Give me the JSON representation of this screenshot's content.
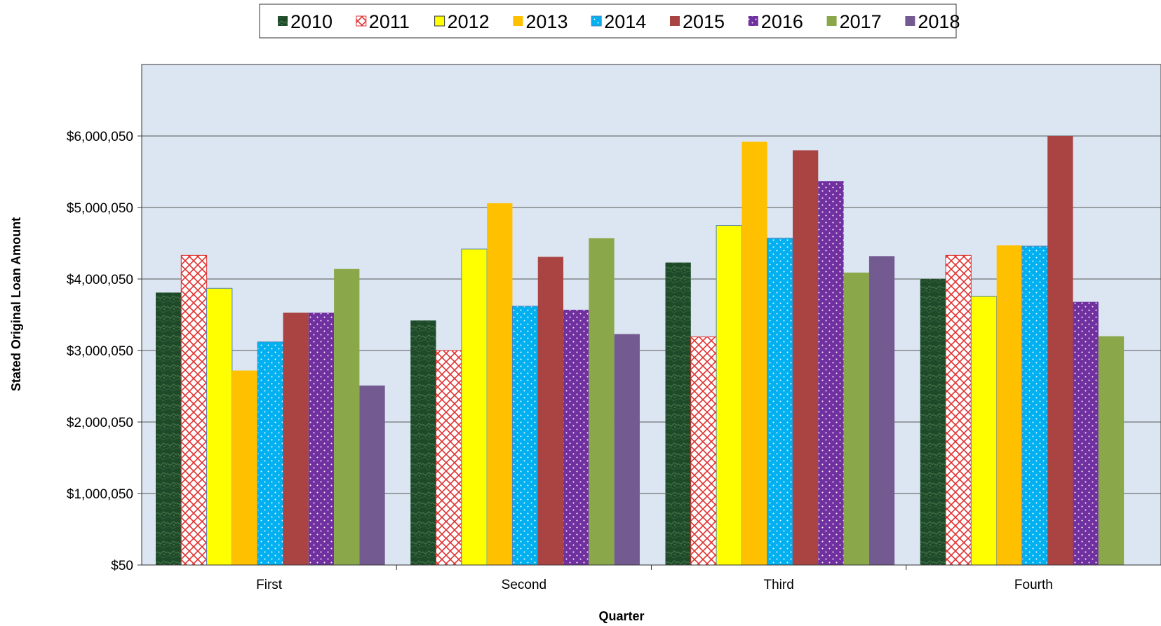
{
  "chart_data": {
    "type": "bar",
    "title": "",
    "xlabel": "Quarter",
    "ylabel": "Stated Original Loan Amount",
    "categories": [
      "First",
      "Second",
      "Third",
      "Fourth"
    ],
    "yticks": [
      "$50",
      "$1,000,050",
      "$2,000,050",
      "$3,000,050",
      "$4,000,050",
      "$5,000,050",
      "$6,000,050"
    ],
    "ylim": [
      50,
      7000050
    ],
    "grid": true,
    "legend_position": "top-center",
    "series": [
      {
        "name": "2010",
        "color": "#1f4a2a",
        "values": [
          3810050,
          3420050,
          4230050,
          4000050
        ]
      },
      {
        "name": "2011",
        "color": "#e03030",
        "values": [
          4330050,
          3000050,
          3190050,
          4330050
        ]
      },
      {
        "name": "2012",
        "color": "#ffff00",
        "values": [
          3870050,
          4420050,
          4750050,
          3760050
        ]
      },
      {
        "name": "2013",
        "color": "#ffc000",
        "values": [
          2720050,
          5060050,
          5920050,
          4470050
        ]
      },
      {
        "name": "2014",
        "color": "#00b0f0",
        "values": [
          3120050,
          3620050,
          4570050,
          4460050
        ]
      },
      {
        "name": "2015",
        "color": "#a94442",
        "values": [
          3530050,
          4310050,
          5800050,
          6000050
        ]
      },
      {
        "name": "2016",
        "color": "#7030a0",
        "values": [
          3530050,
          3570050,
          5370050,
          3680050
        ]
      },
      {
        "name": "2017",
        "color": "#8aa84a",
        "values": [
          4140050,
          4570050,
          4090050,
          3200050
        ]
      },
      {
        "name": "2018",
        "color": "#735a91",
        "values": [
          2510050,
          3230050,
          4320050,
          null
        ]
      }
    ]
  }
}
